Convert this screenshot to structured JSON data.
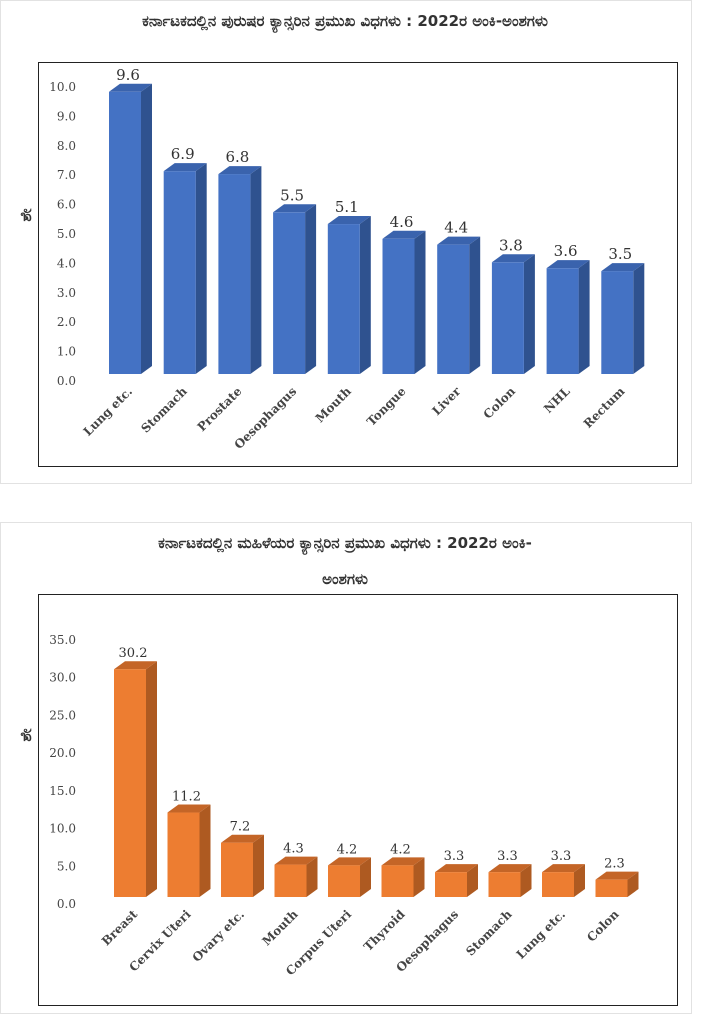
{
  "chart_data": [
    {
      "type": "bar",
      "title": "ಕರ್ನಾಟಕದಲ್ಲಿನ ಪುರುಷರ ಕ್ಯಾನ್ಸರಿನ ಪ್ರಮುಖ ವಿಧಗಳು : 2022ರ ಅಂಕಿ-ಅಂಶಗಳು",
      "ylabel": "ಶೇ",
      "xlabel": "",
      "categories": [
        "Lung etc.",
        "Stomach",
        "Prostate",
        "Oesophagus",
        "Mouth",
        "Tongue",
        "Liver",
        "Colon",
        "NHL",
        "Rectum"
      ],
      "values": [
        9.6,
        6.9,
        6.8,
        5.5,
        5.1,
        4.6,
        4.4,
        3.8,
        3.6,
        3.5
      ],
      "ylim": [
        0,
        10
      ],
      "yticks": [
        "0.0",
        "1.0",
        "2.0",
        "3.0",
        "4.0",
        "5.0",
        "6.0",
        "7.0",
        "8.0",
        "9.0",
        "10.0"
      ],
      "color": {
        "front": "#4472C4",
        "side": "#2F528F",
        "top": "#3A63AD"
      },
      "grid": false
    },
    {
      "type": "bar",
      "title": "ಕರ್ನಾಟಕದಲ್ಲಿನ ಮಹಿಳೆಯರ ಕ್ಯಾನ್ಸರಿನ ಪ್ರಮುಖ ವಿಧಗಳು : 2022ರ ಅಂಕಿ-",
      "title_line2": "ಅಂಶಗಳು",
      "ylabel": "ಶೇ",
      "xlabel": "",
      "categories": [
        "Breast",
        "Cervix Uteri",
        "Ovary etc.",
        "Mouth",
        "Corpus Uteri",
        "Thyroid",
        "Oesophagus",
        "Stomach",
        "Lung etc.",
        "Colon"
      ],
      "values": [
        30.2,
        11.2,
        7.2,
        4.3,
        4.2,
        4.2,
        3.3,
        3.3,
        3.3,
        2.3
      ],
      "ylim": [
        0,
        35
      ],
      "yticks": [
        "0.0",
        "5.0",
        "10.0",
        "15.0",
        "20.0",
        "25.0",
        "30.0",
        "35.0"
      ],
      "color": {
        "front": "#ED7D31",
        "side": "#AE5A21",
        "top": "#C46527"
      },
      "grid": false
    }
  ]
}
